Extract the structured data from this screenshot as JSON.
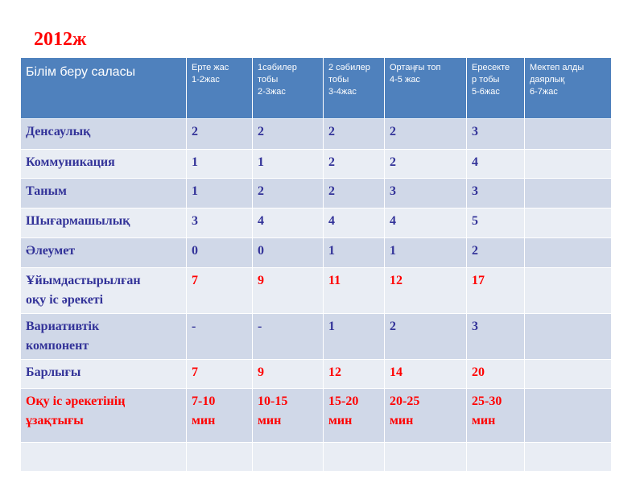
{
  "title": "2012ж",
  "table": {
    "headers": [
      "Білім беру саласы",
      [
        "Ерте жас",
        "1-2жас"
      ],
      [
        "1сәбилер",
        "тобы",
        "2-3жас"
      ],
      [
        "2 сәбилер",
        "тобы",
        "3-4жас"
      ],
      [
        "Ортаңғы топ",
        "4-5 жас"
      ],
      [
        "Ересекте",
        "р тобы",
        "5-6жас"
      ],
      [
        "Мектеп алды",
        "даярлық",
        "6-7жас"
      ]
    ],
    "rows": [
      {
        "label": [
          "Денсаулық"
        ],
        "values": [
          "2",
          "2",
          "2",
          "2",
          "3",
          ""
        ]
      },
      {
        "label": [
          "Коммуникация"
        ],
        "values": [
          "1",
          "1",
          "2",
          "2",
          "4",
          ""
        ]
      },
      {
        "label": [
          "Таным"
        ],
        "values": [
          "1",
          "2",
          "2",
          "3",
          "3",
          ""
        ]
      },
      {
        "label": [
          "Шығармашылық"
        ],
        "values": [
          "3",
          "4",
          "4",
          "4",
          "5",
          ""
        ]
      },
      {
        "label": [
          "Әлеумет"
        ],
        "values": [
          "0",
          "0",
          "1",
          "1",
          "2",
          ""
        ]
      },
      {
        "label": [
          "Ұйымдастырылған",
          "оқу іс әрекеті"
        ],
        "values": [
          "7",
          "9",
          "11",
          "12",
          "17",
          ""
        ]
      },
      {
        "label": [
          "Вариативтік",
          "компонент"
        ],
        "values": [
          "-",
          "-",
          "1",
          "2",
          "3",
          ""
        ]
      },
      {
        "label": [
          "Барлығы"
        ],
        "values": [
          "7",
          "9",
          "12",
          "14",
          "20",
          ""
        ]
      },
      {
        "label": [
          "Оқу іс әрекетінің",
          "ұзақтығы"
        ],
        "values": [
          [
            "7-10",
            "мин"
          ],
          [
            "10-15",
            "мин"
          ],
          [
            "15-20",
            "мин"
          ],
          [
            "20-25",
            "мин"
          ],
          [
            "25-30",
            "мин"
          ],
          ""
        ]
      },
      {
        "label": [
          ""
        ],
        "values": [
          "",
          "",
          "",
          "",
          "",
          ""
        ]
      }
    ]
  },
  "colors": {
    "header_bg": "#4f81bd",
    "row_dark": "#d0d8e8",
    "row_light": "#e9edf4",
    "text_blue": "#333399",
    "text_red": "#ff0000"
  }
}
